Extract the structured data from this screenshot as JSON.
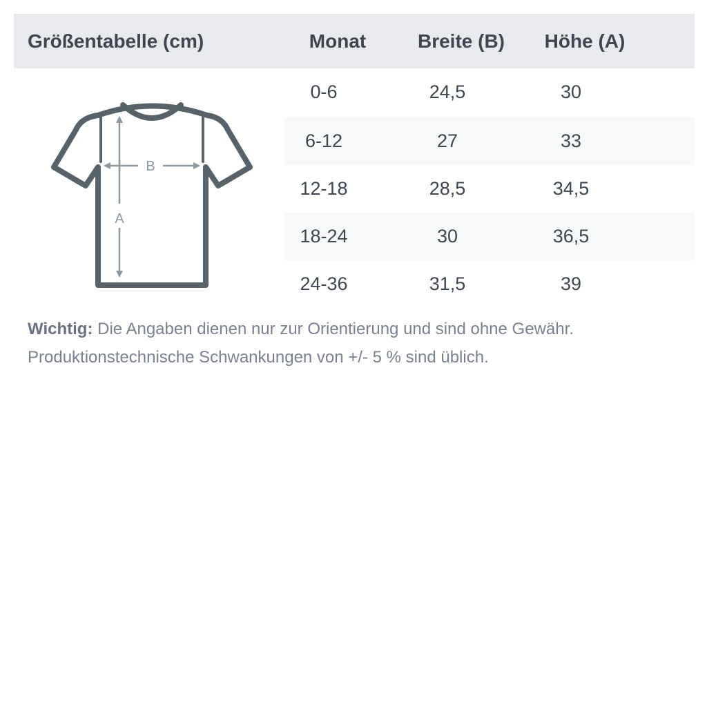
{
  "table": {
    "title": "Größentabelle (cm)",
    "columns": [
      "Monat",
      "Breite (B)",
      "Höhe (A)"
    ],
    "rows": [
      [
        "0-6",
        "24,5",
        "30"
      ],
      [
        "6-12",
        "27",
        "33"
      ],
      [
        "12-18",
        "28,5",
        "34,5"
      ],
      [
        "18-24",
        "30",
        "36,5"
      ],
      [
        "24-36",
        "31,5",
        "39"
      ]
    ]
  },
  "diagram": {
    "label_width": "B",
    "label_height": "A",
    "icon": "tshirt-icon",
    "outline_color": "#56636b",
    "arrow_color": "#8c99a3"
  },
  "note": {
    "label": "Wichtig:",
    "text": " Die Angaben dienen nur zur Orientierung und sind ohne Gewähr. Produktionstechnische Schwankungen von +/- 5 % sind üblich."
  },
  "colors": {
    "header_bg": "#e9eaee",
    "stripe_bg": "#f7f8fa",
    "text": "#3f4652"
  }
}
